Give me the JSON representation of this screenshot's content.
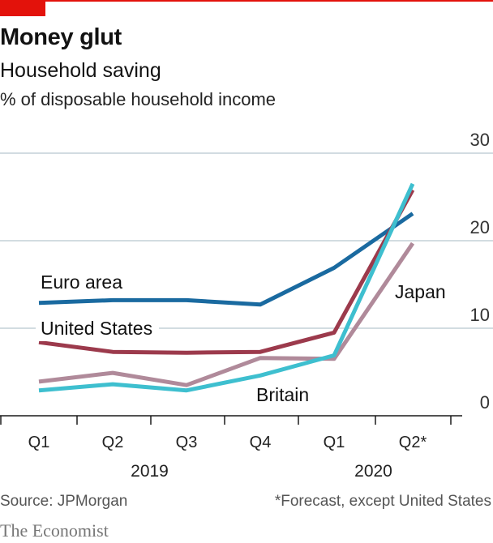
{
  "header": {
    "title": "Money glut",
    "subtitle": "Household saving",
    "unit": "% of disposable household income"
  },
  "footer": {
    "source": "Source: JPMorgan",
    "note": "*Forecast, except United States",
    "brand": "The Economist"
  },
  "chart_data": {
    "type": "line",
    "categories": [
      "Q1",
      "Q2",
      "Q3",
      "Q4",
      "Q1",
      "Q2*"
    ],
    "years": [
      {
        "label": "2019",
        "from": 0,
        "to": 3
      },
      {
        "label": "2020",
        "from": 4,
        "to": 5
      }
    ],
    "ylim": [
      0,
      30
    ],
    "yticks": [
      0,
      10,
      20,
      30
    ],
    "grid": true,
    "series": [
      {
        "name": "Euro area",
        "color": "#1a6aa0",
        "values": [
          12.9,
          13.2,
          13.2,
          12.7,
          16.9,
          23.1
        ]
      },
      {
        "name": "United States",
        "color": "#9c3a4c",
        "values": [
          8.4,
          7.3,
          7.2,
          7.3,
          9.5,
          25.8
        ]
      },
      {
        "name": "Japan",
        "color": "#b08a9a",
        "values": [
          3.9,
          4.9,
          3.5,
          6.6,
          6.5,
          19.7
        ]
      },
      {
        "name": "Britain",
        "color": "#3ebfcf",
        "values": [
          2.9,
          3.6,
          2.9,
          4.6,
          6.9,
          26.5
        ]
      }
    ]
  }
}
